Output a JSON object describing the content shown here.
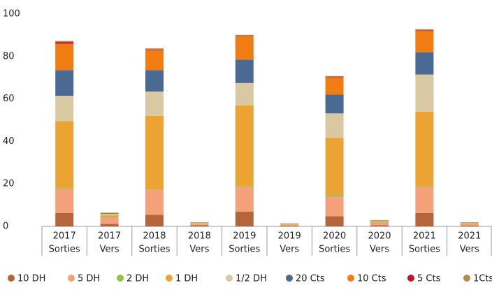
{
  "chart_data": {
    "type": "stacked_bar",
    "categories": [
      [
        "2017",
        "Sorties"
      ],
      [
        "2017",
        "Vers"
      ],
      [
        "2018",
        "Sorties"
      ],
      [
        "2018",
        "Vers"
      ],
      [
        "2019",
        "Sorties"
      ],
      [
        "2019",
        "Vers"
      ],
      [
        "2020",
        "Sorties"
      ],
      [
        "2020",
        "Vers"
      ],
      [
        "2021",
        "Sorties"
      ],
      [
        "2021",
        "Vers"
      ]
    ],
    "series": [
      {
        "name": "10 DH",
        "color": "#b5653a",
        "values": [
          6.3,
          1.2,
          5.5,
          0.5,
          7,
          0.3,
          4.8,
          0.5,
          6.3,
          0.4
        ]
      },
      {
        "name": "5 DH",
        "color": "#f4a07a",
        "values": [
          11.5,
          3.2,
          11.5,
          0.6,
          11.5,
          0.4,
          9.5,
          1,
          12.2,
          0.6
        ]
      },
      {
        "name": "2 DH",
        "color": "#8cc63f",
        "values": [
          0.3,
          0.6,
          0.2,
          0.1,
          0.3,
          0.1,
          0.7,
          0.2,
          0.3,
          0.1
        ]
      },
      {
        "name": "1 DH",
        "color": "#eba433",
        "values": [
          31.4,
          0.5,
          34.8,
          0.3,
          38.2,
          0.3,
          26.7,
          0.5,
          35.2,
          0.4
        ]
      },
      {
        "name": "1/2 DH",
        "color": "#d9c9a3",
        "values": [
          12,
          0.4,
          11.5,
          0.2,
          10.5,
          0.2,
          11.5,
          0.3,
          17.5,
          0.2
        ]
      },
      {
        "name": "20 Cts",
        "color": "#4a6a94",
        "values": [
          12,
          0.2,
          10,
          0.1,
          11,
          0.1,
          8.8,
          0.2,
          10.5,
          0.1
        ]
      },
      {
        "name": "10 Cts",
        "color": "#ef7d12",
        "values": [
          12.5,
          0.2,
          9.5,
          0.1,
          11,
          0.1,
          8,
          0.2,
          10,
          0.1
        ]
      },
      {
        "name": "5 Cts",
        "color": "#c8102e",
        "values": [
          0.8,
          0,
          0.3,
          0,
          0.2,
          0,
          0.3,
          0,
          0.3,
          0
        ]
      },
      {
        "name": "1Cts",
        "color": "#b08c4a",
        "values": [
          0.5,
          0.2,
          0.5,
          0.1,
          0.5,
          0,
          0.5,
          0.1,
          0.5,
          0.1
        ]
      }
    ],
    "ylim": [
      0,
      100
    ],
    "yticks": [
      0,
      20,
      40,
      60,
      80,
      100
    ],
    "grid": false,
    "legend": "bottom"
  }
}
